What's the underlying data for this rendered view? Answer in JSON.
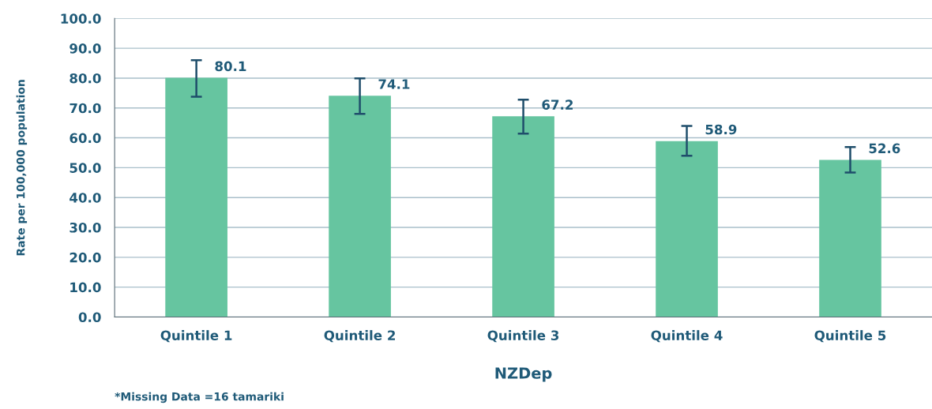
{
  "chart_data": {
    "type": "bar",
    "xlabel": "NZDep",
    "ylabel": "Rate per 100,000 population",
    "categories": [
      "Quintile 1",
      "Quintile 2",
      "Quintile 3",
      "Quintile 4",
      "Quintile 5"
    ],
    "values": [
      80.1,
      74.1,
      67.2,
      58.9,
      52.6
    ],
    "color": "#66c5a0",
    "errors": [
      [
        73.8,
        86.0
      ],
      [
        68.0,
        79.9
      ],
      [
        61.4,
        72.8
      ],
      [
        54.0,
        64.0
      ],
      [
        48.4,
        56.9
      ]
    ],
    "data_labels": true,
    "ylim": [
      0,
      100
    ],
    "yticks": [
      {
        "value": 0,
        "label": "0.0"
      },
      {
        "value": 10,
        "label": "10.0"
      },
      {
        "value": 20,
        "label": "20.0"
      },
      {
        "value": 30,
        "label": "30.0"
      },
      {
        "value": 40,
        "label": "40.0"
      },
      {
        "value": 50,
        "label": "50.0"
      },
      {
        "value": 60,
        "label": "60.0"
      },
      {
        "value": 70,
        "label": "70.0"
      },
      {
        "value": 80,
        "label": "80.0"
      },
      {
        "value": 90,
        "label": "90.0"
      },
      {
        "value": 100,
        "label": "100.0"
      }
    ],
    "grid": "y",
    "annotations": [
      "*Missing Data =16 tamariki"
    ]
  }
}
